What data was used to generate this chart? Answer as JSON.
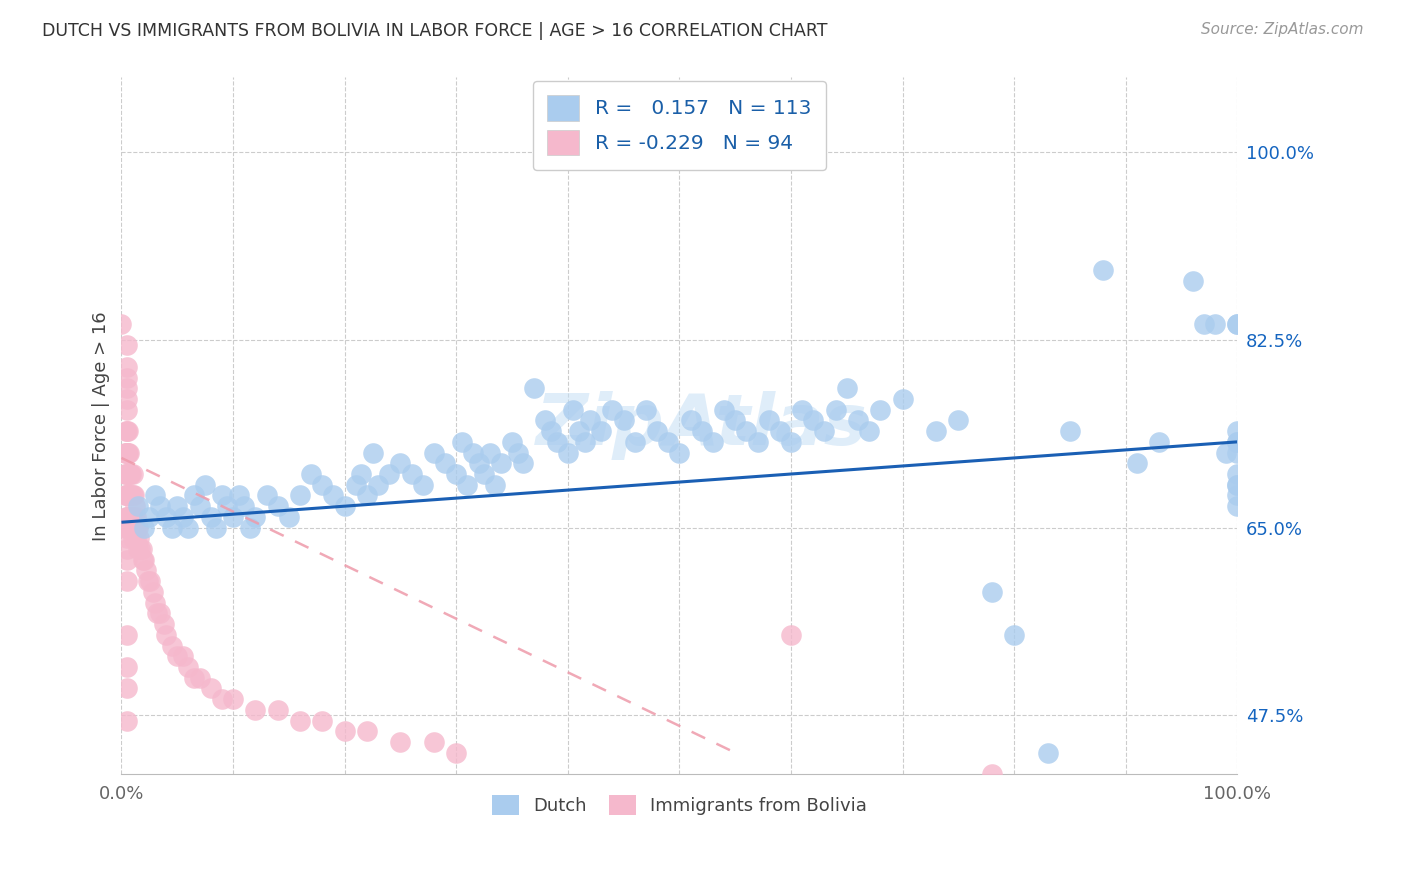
{
  "title": "DUTCH VS IMMIGRANTS FROM BOLIVIA IN LABOR FORCE | AGE > 16 CORRELATION CHART",
  "source": "Source: ZipAtlas.com",
  "ylabel": "In Labor Force | Age > 16",
  "xlim": [
    0.0,
    1.0
  ],
  "ylim": [
    0.42,
    1.07
  ],
  "background_color": "#ffffff",
  "dutch_color": "#aaccee",
  "bolivia_color": "#f5b8cc",
  "dutch_line_color": "#1a5fb4",
  "bolivia_line_color": "#ee9aaa",
  "dutch_R": 0.157,
  "dutch_N": 113,
  "bolivia_R": -0.229,
  "bolivia_N": 94,
  "legend_color": "#1a5fa8",
  "watermark": "ZipAtlas",
  "grid_color": "#cccccc",
  "ytick_pos": [
    0.475,
    0.65,
    0.825,
    1.0
  ],
  "ytick_labels": [
    "47.5%",
    "65.0%",
    "82.5%",
    "100.0%"
  ],
  "dutch_x": [
    0.015,
    0.02,
    0.025,
    0.03,
    0.035,
    0.04,
    0.045,
    0.05,
    0.055,
    0.06,
    0.065,
    0.07,
    0.075,
    0.08,
    0.085,
    0.09,
    0.095,
    0.1,
    0.105,
    0.11,
    0.115,
    0.12,
    0.13,
    0.14,
    0.15,
    0.16,
    0.17,
    0.18,
    0.19,
    0.2,
    0.21,
    0.215,
    0.22,
    0.225,
    0.23,
    0.24,
    0.25,
    0.26,
    0.27,
    0.28,
    0.29,
    0.3,
    0.305,
    0.31,
    0.315,
    0.32,
    0.325,
    0.33,
    0.335,
    0.34,
    0.35,
    0.355,
    0.36,
    0.37,
    0.38,
    0.385,
    0.39,
    0.4,
    0.405,
    0.41,
    0.415,
    0.42,
    0.43,
    0.44,
    0.45,
    0.46,
    0.47,
    0.48,
    0.49,
    0.5,
    0.51,
    0.52,
    0.53,
    0.54,
    0.55,
    0.56,
    0.57,
    0.58,
    0.59,
    0.6,
    0.61,
    0.62,
    0.63,
    0.64,
    0.65,
    0.66,
    0.67,
    0.68,
    0.7,
    0.73,
    0.75,
    0.78,
    0.8,
    0.83,
    0.85,
    0.88,
    0.91,
    0.93,
    0.96,
    0.97,
    0.98,
    0.99,
    1.0,
    1.0,
    1.0,
    1.0,
    1.0,
    1.0,
    1.0,
    1.0,
    1.0,
    1.0,
    1.0
  ],
  "dutch_y": [
    0.67,
    0.65,
    0.66,
    0.68,
    0.67,
    0.66,
    0.65,
    0.67,
    0.66,
    0.65,
    0.68,
    0.67,
    0.69,
    0.66,
    0.65,
    0.68,
    0.67,
    0.66,
    0.68,
    0.67,
    0.65,
    0.66,
    0.68,
    0.67,
    0.66,
    0.68,
    0.7,
    0.69,
    0.68,
    0.67,
    0.69,
    0.7,
    0.68,
    0.72,
    0.69,
    0.7,
    0.71,
    0.7,
    0.69,
    0.72,
    0.71,
    0.7,
    0.73,
    0.69,
    0.72,
    0.71,
    0.7,
    0.72,
    0.69,
    0.71,
    0.73,
    0.72,
    0.71,
    0.78,
    0.75,
    0.74,
    0.73,
    0.72,
    0.76,
    0.74,
    0.73,
    0.75,
    0.74,
    0.76,
    0.75,
    0.73,
    0.76,
    0.74,
    0.73,
    0.72,
    0.75,
    0.74,
    0.73,
    0.76,
    0.75,
    0.74,
    0.73,
    0.75,
    0.74,
    0.73,
    0.76,
    0.75,
    0.74,
    0.76,
    0.78,
    0.75,
    0.74,
    0.76,
    0.77,
    0.74,
    0.75,
    0.59,
    0.55,
    0.44,
    0.74,
    0.89,
    0.71,
    0.73,
    0.88,
    0.84,
    0.84,
    0.72,
    0.73,
    0.74,
    0.84,
    0.84,
    0.67,
    0.69,
    0.7,
    0.72,
    0.73,
    0.68,
    0.69
  ],
  "bolivia_x": [
    0.003,
    0.003,
    0.003,
    0.004,
    0.004,
    0.004,
    0.004,
    0.004,
    0.004,
    0.005,
    0.005,
    0.005,
    0.005,
    0.005,
    0.005,
    0.005,
    0.005,
    0.005,
    0.005,
    0.005,
    0.006,
    0.006,
    0.006,
    0.006,
    0.006,
    0.007,
    0.007,
    0.007,
    0.007,
    0.008,
    0.008,
    0.008,
    0.009,
    0.009,
    0.009,
    0.01,
    0.01,
    0.01,
    0.01,
    0.011,
    0.011,
    0.012,
    0.012,
    0.013,
    0.013,
    0.014,
    0.015,
    0.015,
    0.016,
    0.017,
    0.018,
    0.019,
    0.02,
    0.022,
    0.024,
    0.026,
    0.028,
    0.03,
    0.032,
    0.035,
    0.038,
    0.04,
    0.045,
    0.05,
    0.055,
    0.06,
    0.065,
    0.07,
    0.08,
    0.09,
    0.1,
    0.12,
    0.14,
    0.16,
    0.18,
    0.2,
    0.22,
    0.25,
    0.28,
    0.3,
    0.0,
    0.005,
    0.005,
    0.005,
    0.005,
    0.005,
    0.005,
    0.005,
    0.005,
    0.005,
    0.005,
    0.005,
    0.6,
    0.78
  ],
  "bolivia_y": [
    0.72,
    0.7,
    0.68,
    0.74,
    0.72,
    0.7,
    0.68,
    0.66,
    0.65,
    0.78,
    0.76,
    0.74,
    0.72,
    0.7,
    0.68,
    0.66,
    0.65,
    0.64,
    0.63,
    0.62,
    0.74,
    0.72,
    0.7,
    0.68,
    0.66,
    0.72,
    0.7,
    0.68,
    0.66,
    0.7,
    0.68,
    0.66,
    0.7,
    0.68,
    0.66,
    0.7,
    0.68,
    0.66,
    0.64,
    0.68,
    0.66,
    0.67,
    0.65,
    0.66,
    0.64,
    0.65,
    0.65,
    0.63,
    0.64,
    0.63,
    0.63,
    0.62,
    0.62,
    0.61,
    0.6,
    0.6,
    0.59,
    0.58,
    0.57,
    0.57,
    0.56,
    0.55,
    0.54,
    0.53,
    0.53,
    0.52,
    0.51,
    0.51,
    0.5,
    0.49,
    0.49,
    0.48,
    0.48,
    0.47,
    0.47,
    0.46,
    0.46,
    0.45,
    0.45,
    0.44,
    0.84,
    0.82,
    0.8,
    0.79,
    0.77,
    0.72,
    0.68,
    0.6,
    0.55,
    0.52,
    0.5,
    0.47,
    0.55,
    0.42
  ]
}
